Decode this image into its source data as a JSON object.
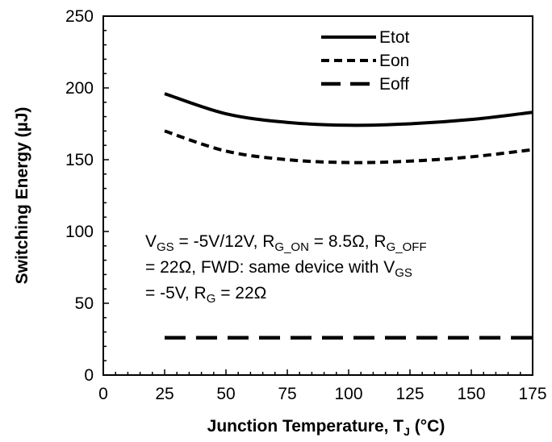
{
  "chart_data": {
    "type": "line",
    "title": "",
    "xlabel_main": "Junction Temperature, T",
    "xlabel_sub": "J",
    "xlabel_unit": " (°C)",
    "ylabel": "Switching Energy (µJ)",
    "xlim": [
      0,
      175
    ],
    "ylim": [
      0,
      250
    ],
    "x_ticks": [
      0,
      25,
      50,
      75,
      100,
      125,
      150,
      175
    ],
    "y_ticks": [
      0,
      50,
      100,
      150,
      200,
      250
    ],
    "x_tick_labels": [
      "0",
      "25",
      "50",
      "75",
      "100",
      "125",
      "150",
      "175"
    ],
    "y_tick_labels": [
      "0",
      "50",
      "100",
      "150",
      "200",
      "250"
    ],
    "grid": false,
    "legend_position": "top-right",
    "series": [
      {
        "name": "Etot",
        "style": "solid",
        "x": [
          25,
          50,
          75,
          100,
          125,
          150,
          175
        ],
        "y": [
          196,
          182,
          176,
          174,
          175,
          178,
          183
        ]
      },
      {
        "name": "Eon",
        "style": "short-dash",
        "x": [
          25,
          50,
          75,
          100,
          125,
          150,
          175
        ],
        "y": [
          170,
          156,
          150,
          148,
          149,
          152,
          157
        ]
      },
      {
        "name": "Eoff",
        "style": "long-dash",
        "x": [
          25,
          50,
          75,
          100,
          125,
          150,
          175
        ],
        "y": [
          26,
          26,
          26,
          26,
          26,
          26,
          26
        ]
      }
    ],
    "annotation_lines": [
      [
        {
          "t": "V"
        },
        {
          "t": "GS",
          "sub": true
        },
        {
          "t": " = -5V/12V, R"
        },
        {
          "t": "G_ON",
          "sub": true
        },
        {
          "t": " = 8.5Ω, R"
        },
        {
          "t": "G_OFF",
          "sub": true
        }
      ],
      [
        {
          "t": "= 22Ω, FWD: same device with V"
        },
        {
          "t": "GS",
          "sub": true
        }
      ],
      [
        {
          "t": "= -5V, R"
        },
        {
          "t": "G",
          "sub": true
        },
        {
          "t": " = 22Ω"
        }
      ]
    ],
    "colors": {
      "line": "#000000",
      "axis": "#000000"
    }
  }
}
